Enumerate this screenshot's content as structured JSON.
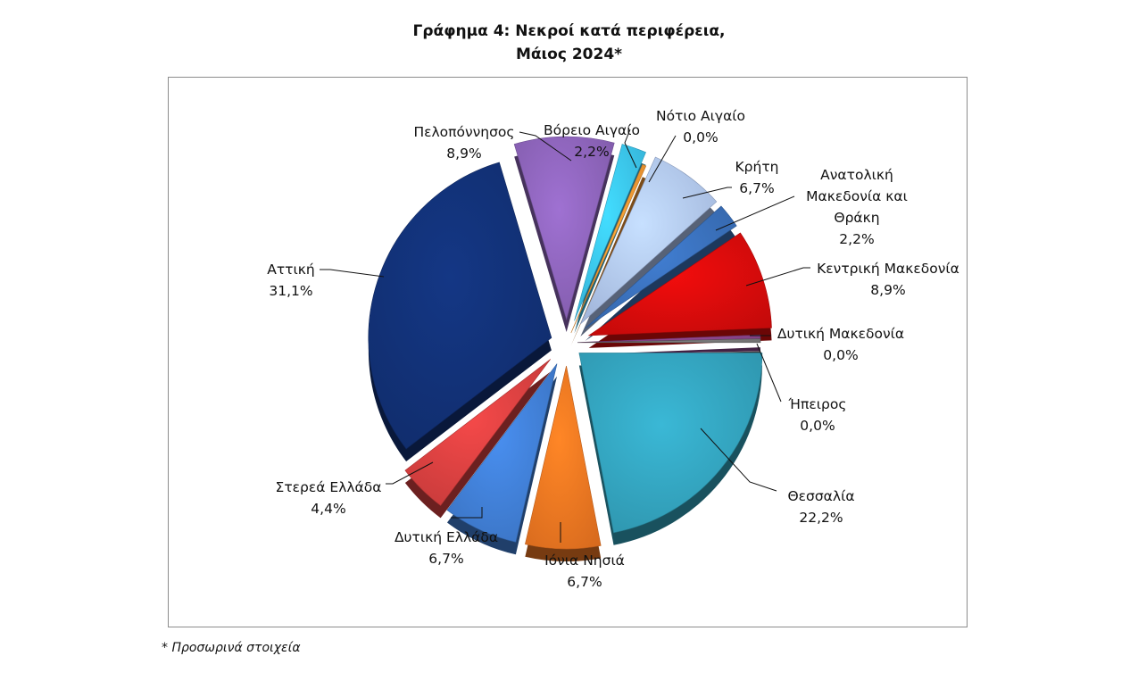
{
  "chart_data": {
    "type": "pie",
    "title_line1": "Γράφημα 4: Νεκροί κατά περιφέρεια,",
    "title_line2": "Μάιος 2024*",
    "series": [
      {
        "name": "Θεσσαλία",
        "value": 22.2,
        "label": "22,2%",
        "color": "#2e93ab"
      },
      {
        "name": "Ιόνια Νησιά",
        "value": 6.7,
        "label": "6,7%",
        "color": "#d86b1e"
      },
      {
        "name": "Δυτική Ελλάδα",
        "value": 6.7,
        "label": "6,7%",
        "color": "#3a72c0"
      },
      {
        "name": "Στερεά Ελλάδα",
        "value": 4.4,
        "label": "4,4%",
        "color": "#c43a3a"
      },
      {
        "name": "Αττική",
        "value": 31.1,
        "label": "31,1%",
        "color": "#102c6a"
      },
      {
        "name": "Πελοπόννησος",
        "value": 8.9,
        "label": "8,9%",
        "color": "#7f5aa8"
      },
      {
        "name": "Βόρειο Αιγαίο",
        "value": 2.2,
        "label": "2,2%",
        "color": "#35b1d6"
      },
      {
        "name": "Νότιο Αιγαίο",
        "value": 0.0,
        "label": "0,0%",
        "color": "#e08a2e"
      },
      {
        "name": "Κρήτη",
        "value": 6.7,
        "label": "6,7%",
        "color": "#9fb3d8"
      },
      {
        "name": "Ανατολική Μακεδονία και Θράκη",
        "value": 2.2,
        "label": "2,2%",
        "color": "#3465a8"
      },
      {
        "name": "Κεντρική Μακεδονία",
        "value": 8.9,
        "label": "8,9%",
        "color": "#c20a0a"
      },
      {
        "name": "Δυτική Μακεδονία",
        "value": 0.0,
        "label": "0,0%",
        "color": "#7a3c7a"
      },
      {
        "name": "Ήπειρος",
        "value": 0.0,
        "label": "0,0%",
        "color": "#6a6a6a"
      }
    ]
  },
  "footnote": "* Προσωρινά στοιχεία"
}
